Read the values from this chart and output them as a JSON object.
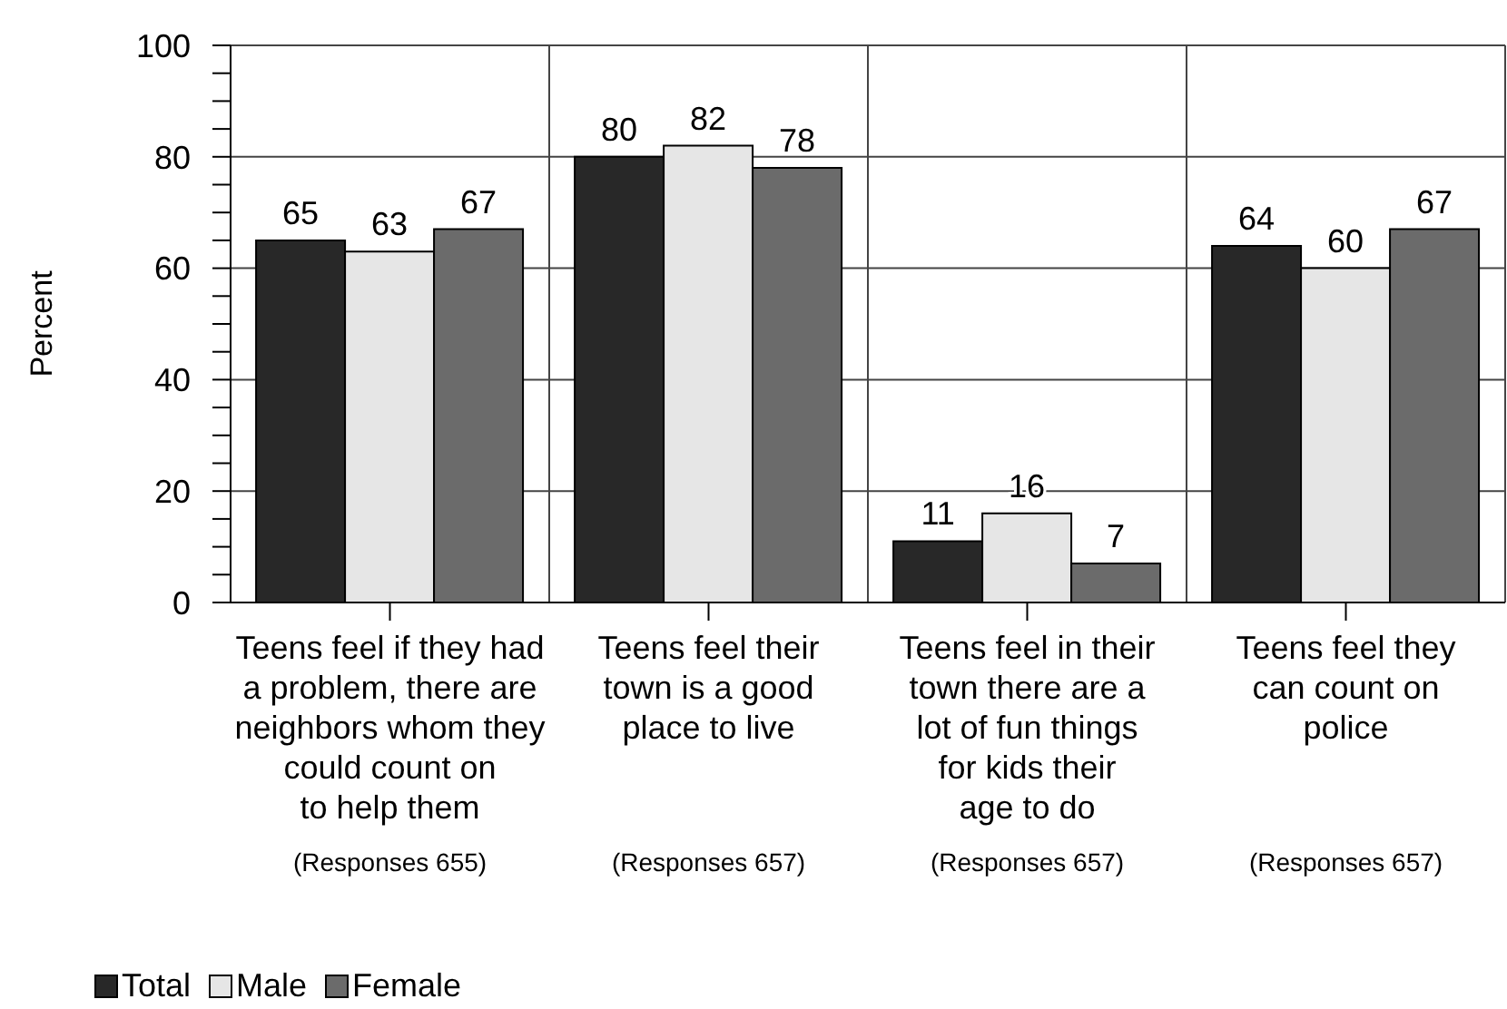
{
  "chart_data": {
    "type": "bar",
    "ylabel": "Percent",
    "categories": [
      "Teens feel if they had\na problem, there are\nneighbors whom they\ncould count on\nto help them",
      "Teens feel their\ntown is a good\nplace to live",
      "Teens feel in their\ntown there are a\nlot of fun things\nfor kids their\nage to do",
      "Teens feel they\ncan count on\npolice"
    ],
    "series": [
      {
        "name": "Total",
        "color": "#282828",
        "values": [
          65,
          80,
          11,
          64
        ]
      },
      {
        "name": "Male",
        "color": "#e6e6e6",
        "values": [
          63,
          82,
          16,
          60
        ]
      },
      {
        "name": "Female",
        "color": "#6b6b6b",
        "values": [
          67,
          78,
          7,
          67
        ]
      }
    ],
    "ylim": [
      0,
      100
    ],
    "yticks": [
      0,
      {
        "value": 5,
        "label": null
      },
      {
        "value": 10,
        "label": null
      },
      {
        "value": 15,
        "label": null
      },
      20,
      {
        "value": 25,
        "label": null
      },
      {
        "value": 30,
        "label": null
      },
      {
        "value": 35,
        "label": null
      },
      40,
      {
        "value": 45,
        "label": null
      },
      {
        "value": 50,
        "label": null
      },
      {
        "value": 55,
        "label": null
      },
      60,
      {
        "value": 65,
        "label": null
      },
      {
        "value": 70,
        "label": null
      },
      {
        "value": 75,
        "label": null
      },
      80,
      {
        "value": 85,
        "label": null
      },
      {
        "value": 90,
        "label": null
      },
      {
        "value": 95,
        "label": null
      },
      100
    ],
    "grid": true,
    "legend": "bottom left",
    "data_labels": true,
    "annotations": [
      "(Responses 655)",
      "(Responses 657)",
      "(Responses 657)",
      "(Responses 657)"
    ]
  }
}
